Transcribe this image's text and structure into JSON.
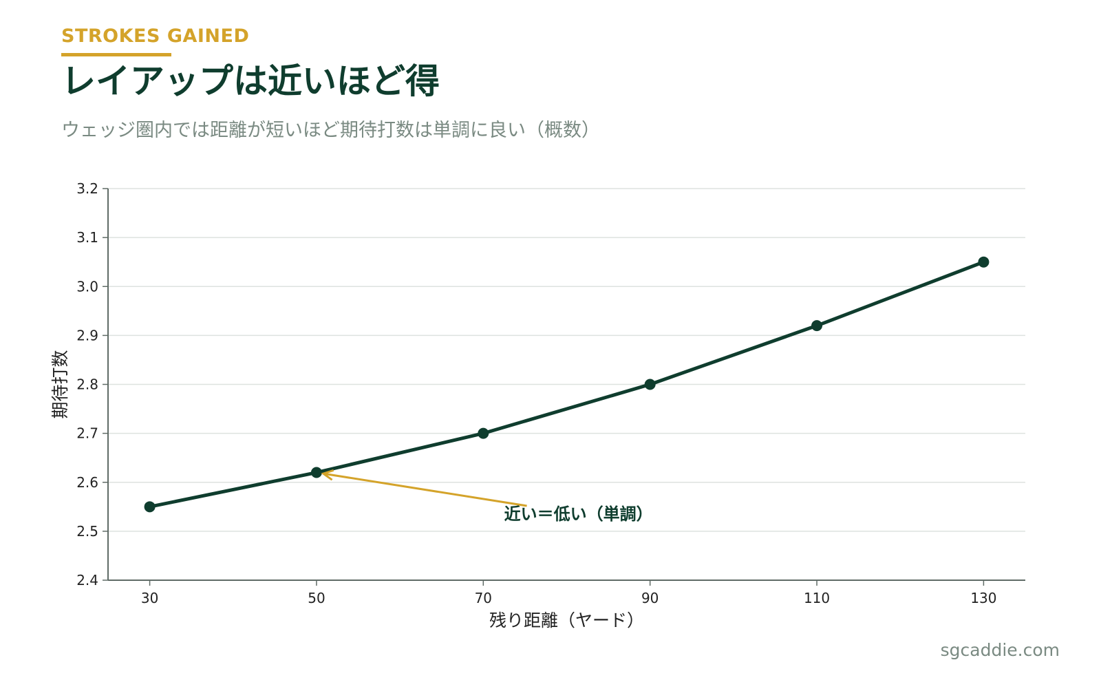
{
  "header": {
    "eyebrow": "STROKES GAINED",
    "title": "レイアップは近いほど得",
    "subtitle": "ウェッジ圏内では距離が短いほど期待打数は単調に良い（概数）"
  },
  "footer": {
    "site": "sgcaddie.com"
  },
  "colors": {
    "accent": "#D4A32A",
    "primary": "#0F3D2E",
    "subtitle": "#7A8A82",
    "grid": "#DDE2DF",
    "axis": "#5F6B66",
    "tick_text": "#222222"
  },
  "chart_data": {
    "type": "line",
    "x": [
      30,
      50,
      70,
      90,
      110,
      130
    ],
    "series": [
      {
        "values": [
          2.55,
          2.62,
          2.7,
          2.8,
          2.92,
          3.05
        ]
      }
    ],
    "xlabel": "残り距離（ヤード）",
    "ylabel": "期待打数",
    "xlim": [
      25,
      135
    ],
    "ylim": [
      2.4,
      3.2
    ],
    "xticks": [
      30,
      50,
      70,
      90,
      110,
      130
    ],
    "yticks": [
      2.4,
      2.5,
      2.6,
      2.7,
      2.8,
      2.9,
      3.0,
      3.1,
      3.2
    ],
    "grid": "horizontal",
    "annotation": {
      "text": "近い＝低い（単調）",
      "point": {
        "x": 50,
        "y": 2.62
      },
      "text_at": {
        "x": 72.5,
        "y": 2.535
      }
    }
  }
}
